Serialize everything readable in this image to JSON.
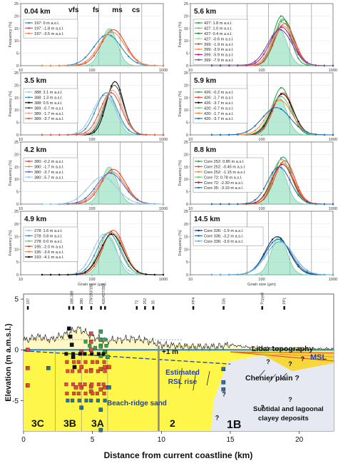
{
  "figure": {
    "size_classes": [
      "vfs",
      "fs",
      "ms",
      "cs"
    ],
    "x_axis_label": "Grain size (µm)",
    "y_axis_label": "Frequency (%)",
    "x_ticks": [
      "10",
      "100",
      "1000"
    ],
    "y_ticks": [
      "0",
      "5",
      "10",
      "15",
      "20",
      "25"
    ]
  },
  "panels": [
    {
      "title": "0.04 km",
      "legend": [
        "197:    0 m a.s.l.",
        "197:  -1.8 m a.s.l.",
        "197:  -3.5 m a.s.l."
      ],
      "colors": [
        "#2b8cbe",
        "#e8483a",
        "#f08a4b"
      ]
    },
    {
      "title": "3.5 km",
      "legend": [
        "388: 2.1 m a.s.l.",
        "388: 1.3 m a.s.l.",
        "388: 0.5 m a.s.l.",
        "389: -0.7 m a.s.l.",
        "389: -1.7 m a.s.l.",
        "389: -3.7 m a.s.l."
      ],
      "colors": [
        "#9ecae1",
        "#4292c6",
        "#111111",
        "#555555",
        "#f4a582",
        "#d6604d"
      ]
    },
    {
      "title": "4.2 km",
      "legend": [
        "380: -0.2 m a.s.l.",
        "380: -1.7 m a.s.l.",
        "380: -3.7 m a.s.l.",
        "380: -5.7 m a.s.l."
      ],
      "colors": [
        "#e8483a",
        "#f08a4b",
        "#4a6fc9",
        "#9ecae1"
      ]
    },
    {
      "title": "4.9 km",
      "legend": [
        "278: 1.6 m a.s.l.",
        "278: 0.8 m a.s.l.",
        "278: 0.0 m a.s.l.",
        "195: -2.0 m a.s.l.",
        "195: -3.6 m a.s.l.",
        "193: -4.1 m a.s.l."
      ],
      "colors": [
        "#9ecae1",
        "#4292c6",
        "#74c476",
        "#e8483a",
        "#f08a4b",
        "#111111"
      ]
    },
    {
      "title": "5.6 km",
      "legend": [
        "427:  1.8 m a.s.l.",
        "427:  1.0 m a.s.l.",
        "427:  0.4 m a.s.l.",
        "427: -0.6 m a.s.l.",
        "399: -1.9 m a.s.l.",
        "399: -3.9 m a.s.l.",
        "399: -5.9 m a.s.l.",
        "399: -7.9 m a.s.l."
      ],
      "colors": [
        "#31a354",
        "#74c476",
        "#238b45",
        "#a1d99b",
        "#e8483a",
        "#f08a4b",
        "#c51b8a",
        "#6a51a3"
      ]
    },
    {
      "title": "5.9 km",
      "legend": [
        "426: -0.2 m a.s.l.",
        "426: -1.7 m a.s.l.",
        "426: -3.7 m a.s.l.",
        "420: -0.7 m a.s.l.",
        "420: -1.7 m a.s.l.",
        "420: -3.7 m a.s.l."
      ],
      "colors": [
        "#31a354",
        "#e8483a",
        "#111111",
        "#74c476",
        "#f08a4b",
        "#2171b5"
      ]
    },
    {
      "title": "8.8 km",
      "legend": [
        "Core 252: 0.85 m a.s.l.",
        "Core 252: -0.45 m a.s.l.",
        "Core 252: -1.15 m a.s.l.",
        "Core  72: 0.78 m a.s.l.",
        "Core  72: -2.30 m a.s.l.",
        "Core  35: -3.10 m a.s.l."
      ],
      "colors": [
        "#31a354",
        "#e8483a",
        "#f08a4b",
        "#74c476",
        "#cb181d",
        "#2171b5"
      ]
    },
    {
      "title": "14.5 km",
      "legend": [
        "Core 336: -1.9 m a.s.l.",
        "Core 336: -3.2 m a.s.l.",
        "Core 336: -3.9 m a.s.l."
      ],
      "colors": [
        "#08306b",
        "#2171b5",
        "#6baed6"
      ]
    }
  ],
  "section": {
    "y_label": "Elevation (m a.m.s.l.)",
    "x_label": "Distance from current coastline (km)",
    "x_ticks": [
      "0",
      "5",
      "10",
      "15",
      "20"
    ],
    "y_ticks": [
      "5",
      "0",
      "-5"
    ],
    "annotations": {
      "lidar": "Lidar topography",
      "msl": "MSL",
      "plus1m": "+1 m",
      "rsl": "Estimated RSL rise",
      "chenier": "Chenier plain ?",
      "beach": "Beach-ridge sand",
      "subtidal_1": "Subtidal and lagoonal",
      "subtidal_2": "clayey deposits"
    },
    "units": [
      "3C",
      "3B",
      "3A",
      "2",
      "1B"
    ],
    "core_labels": [
      "197",
      "388-389",
      "380",
      "278/193/195",
      "426/427/399",
      "72",
      "252",
      "35",
      "PP4",
      "336",
      "Pzpyell",
      "PP1"
    ],
    "questions": [
      "?",
      "?",
      "?",
      "?",
      "?",
      "?",
      "?"
    ]
  },
  "chart_data": [
    {
      "type": "line",
      "title": "0.04 km",
      "x_scale": "log",
      "xlim": [
        10,
        1000
      ],
      "ylim": [
        0,
        25
      ],
      "xlabel": "",
      "ylabel": "Frequency (%)",
      "series": [
        {
          "name": "197:    0 m a.s.l.",
          "mode_um": 165,
          "peak": 12.5,
          "width": 0.19,
          "color": "#2b8cbe"
        },
        {
          "name": "197:  -1.8 m a.s.l.",
          "mode_um": 200,
          "peak": 14.5,
          "width": 0.17,
          "color": "#e8483a"
        },
        {
          "name": "197:  -3.5 m a.s.l.",
          "mode_um": 190,
          "peak": 13.5,
          "width": 0.18,
          "color": "#f08a4b"
        }
      ]
    },
    {
      "type": "line",
      "title": "3.5 km",
      "x_scale": "log",
      "xlim": [
        10,
        1000
      ],
      "ylim": [
        0,
        25
      ],
      "xlabel": "",
      "ylabel": "Frequency (%)",
      "series": [
        {
          "name": "388: 2.1 m a.s.l.",
          "mode_um": 150,
          "peak": 16,
          "width": 0.16,
          "color": "#9ecae1"
        },
        {
          "name": "388: 1.3 m a.s.l.",
          "mode_um": 160,
          "peak": 17,
          "width": 0.15,
          "color": "#4292c6"
        },
        {
          "name": "388: 0.5 m a.s.l.",
          "mode_um": 210,
          "peak": 21.5,
          "width": 0.12,
          "color": "#111111"
        },
        {
          "name": "389: -0.7 m a.s.l.",
          "mode_um": 205,
          "peak": 20,
          "width": 0.13,
          "color": "#555555"
        },
        {
          "name": "389: -1.7 m a.s.l.",
          "mode_um": 195,
          "peak": 18,
          "width": 0.14,
          "color": "#f4a582"
        },
        {
          "name": "389: -3.7 m a.s.l.",
          "mode_um": 185,
          "peak": 17,
          "width": 0.15,
          "color": "#d6604d"
        }
      ]
    },
    {
      "type": "line",
      "title": "4.2 km",
      "x_scale": "log",
      "xlim": [
        10,
        1000
      ],
      "ylim": [
        0,
        25
      ],
      "xlabel": "",
      "ylabel": "Frequency (%)",
      "series": [
        {
          "name": "380: -0.2 m a.s.l.",
          "mode_um": 200,
          "peak": 14,
          "width": 0.17,
          "color": "#e8483a"
        },
        {
          "name": "380: -1.7 m a.s.l.",
          "mode_um": 190,
          "peak": 13,
          "width": 0.18,
          "color": "#f08a4b"
        },
        {
          "name": "380: -3.7 m a.s.l.",
          "mode_um": 180,
          "peak": 12.5,
          "width": 0.19,
          "color": "#4a6fc9"
        },
        {
          "name": "380: -5.7 m a.s.l.",
          "mode_um": 140,
          "peak": 11,
          "width": 0.2,
          "color": "#9ecae1"
        }
      ]
    },
    {
      "type": "line",
      "title": "4.9 km",
      "x_scale": "log",
      "xlim": [
        10,
        1000
      ],
      "ylim": [
        0,
        25
      ],
      "xlabel": "Grain size (µm)",
      "ylabel": "Frequency (%)",
      "series": [
        {
          "name": "278: 1.6 m a.s.l.",
          "mode_um": 150,
          "peak": 16,
          "width": 0.16,
          "color": "#9ecae1"
        },
        {
          "name": "278: 0.8 m a.s.l.",
          "mode_um": 170,
          "peak": 16.5,
          "width": 0.16,
          "color": "#4292c6"
        },
        {
          "name": "278: 0.0 m a.s.l.",
          "mode_um": 180,
          "peak": 17,
          "width": 0.15,
          "color": "#74c476"
        },
        {
          "name": "195: -2.0 m a.s.l.",
          "mode_um": 200,
          "peak": 17.5,
          "width": 0.15,
          "color": "#e8483a"
        },
        {
          "name": "195: -3.6 m a.s.l.",
          "mode_um": 195,
          "peak": 16.5,
          "width": 0.16,
          "color": "#f08a4b"
        },
        {
          "name": "193: -4.1 m a.s.l.",
          "mode_um": 190,
          "peak": 16,
          "width": 0.16,
          "color": "#111111"
        }
      ]
    },
    {
      "type": "line",
      "title": "5.6 km",
      "x_scale": "log",
      "xlim": [
        10,
        1000
      ],
      "ylim": [
        0,
        25
      ],
      "xlabel": "",
      "ylabel": "Frequency (%)",
      "series": [
        {
          "name": "427:  1.8 m a.s.l.",
          "mode_um": 190,
          "peak": 20,
          "width": 0.12,
          "color": "#31a354"
        },
        {
          "name": "427:  1.0 m a.s.l.",
          "mode_um": 200,
          "peak": 19,
          "width": 0.13,
          "color": "#74c476"
        },
        {
          "name": "427:  0.4 m a.s.l.",
          "mode_um": 205,
          "peak": 18.5,
          "width": 0.13,
          "color": "#238b45"
        },
        {
          "name": "427: -0.6 m a.s.l.",
          "mode_um": 195,
          "peak": 17.5,
          "width": 0.14,
          "color": "#a1d99b"
        },
        {
          "name": "399: -1.9 m a.s.l.",
          "mode_um": 210,
          "peak": 17,
          "width": 0.14,
          "color": "#e8483a"
        },
        {
          "name": "399: -3.9 m a.s.l.",
          "mode_um": 200,
          "peak": 16,
          "width": 0.15,
          "color": "#f08a4b"
        },
        {
          "name": "399: -5.9 m a.s.l.",
          "mode_um": 190,
          "peak": 15.5,
          "width": 0.16,
          "color": "#c51b8a"
        },
        {
          "name": "399: -7.9 m a.s.l.",
          "mode_um": 180,
          "peak": 14.5,
          "width": 0.17,
          "color": "#6a51a3"
        }
      ]
    },
    {
      "type": "line",
      "title": "5.9 km",
      "x_scale": "log",
      "xlim": [
        10,
        1000
      ],
      "ylim": [
        0,
        25
      ],
      "xlabel": "",
      "ylabel": "Frequency (%)",
      "series": [
        {
          "name": "426: -0.2 m a.s.l.",
          "mode_um": 190,
          "peak": 19,
          "width": 0.13,
          "color": "#31a354"
        },
        {
          "name": "426: -1.7 m a.s.l.",
          "mode_um": 200,
          "peak": 17,
          "width": 0.14,
          "color": "#e8483a"
        },
        {
          "name": "426: -3.7 m a.s.l.",
          "mode_um": 195,
          "peak": 16.5,
          "width": 0.15,
          "color": "#111111"
        },
        {
          "name": "420: -0.7 m a.s.l.",
          "mode_um": 185,
          "peak": 15.5,
          "width": 0.15,
          "color": "#74c476"
        },
        {
          "name": "420: -1.7 m a.s.l.",
          "mode_um": 180,
          "peak": 14,
          "width": 0.17,
          "color": "#f08a4b"
        },
        {
          "name": "420: -3.7 m a.s.l.",
          "mode_um": 160,
          "peak": 11,
          "width": 0.2,
          "color": "#2171b5"
        }
      ]
    },
    {
      "type": "line",
      "title": "8.8 km",
      "x_scale": "log",
      "xlim": [
        10,
        1000
      ],
      "ylim": [
        0,
        25
      ],
      "xlabel": "",
      "ylabel": "Frequency (%)",
      "series": [
        {
          "name": "Core 252: 0.85 m a.s.l.",
          "mode_um": 200,
          "peak": 19,
          "width": 0.13,
          "color": "#31a354"
        },
        {
          "name": "Core 252: -0.45 m a.s.l.",
          "mode_um": 210,
          "peak": 17.5,
          "width": 0.14,
          "color": "#e8483a"
        },
        {
          "name": "Core 252: -1.15 m a.s.l.",
          "mode_um": 200,
          "peak": 16.5,
          "width": 0.15,
          "color": "#f08a4b"
        },
        {
          "name": "Core  72: 0.78 m a.s.l.",
          "mode_um": 190,
          "peak": 18,
          "width": 0.14,
          "color": "#74c476"
        },
        {
          "name": "Core  72: -2.30 m a.s.l.",
          "mode_um": 195,
          "peak": 16,
          "width": 0.15,
          "color": "#cb181d"
        },
        {
          "name": "Core  35: -3.10 m a.s.l.",
          "mode_um": 175,
          "peak": 15,
          "width": 0.16,
          "color": "#2171b5"
        }
      ]
    },
    {
      "type": "line",
      "title": "14.5 km",
      "x_scale": "log",
      "xlim": [
        10,
        1000
      ],
      "ylim": [
        0,
        25
      ],
      "xlabel": "Grain size (µm)",
      "ylabel": "Frequency (%)",
      "series": [
        {
          "name": "Core 336: -1.9 m a.s.l.",
          "mode_um": 165,
          "peak": 15,
          "width": 0.17,
          "color": "#08306b"
        },
        {
          "name": "Core 336: -3.2 m a.s.l.",
          "mode_um": 170,
          "peak": 14,
          "width": 0.18,
          "color": "#2171b5"
        },
        {
          "name": "Core 336: -3.9 m a.s.l.",
          "mode_um": 180,
          "peak": 13,
          "width": 0.19,
          "color": "#6baed6"
        }
      ]
    },
    {
      "type": "scatter",
      "title": "",
      "xlabel": "Distance from current coastline (km)",
      "ylabel": "Elevation (m a.m.s.l.)",
      "xlim": [
        0,
        22.5
      ],
      "ylim": [
        -8,
        5.5
      ],
      "lidar_profile": [
        [
          0,
          0.9
        ],
        [
          1,
          1.3
        ],
        [
          2,
          1.0
        ],
        [
          3,
          1.5
        ],
        [
          4,
          2.1
        ],
        [
          5,
          1.3
        ],
        [
          6,
          0.9
        ],
        [
          7,
          1.0
        ],
        [
          8,
          1.1
        ],
        [
          9,
          0.9
        ],
        [
          10,
          0.5
        ],
        [
          11,
          0.4
        ],
        [
          12,
          0.3
        ],
        [
          13,
          0.3
        ],
        [
          14,
          0.3
        ],
        [
          15,
          0.5
        ],
        [
          16,
          0.3
        ],
        [
          17,
          0.2
        ],
        [
          18,
          0.2
        ],
        [
          19,
          0.1
        ],
        [
          20,
          0.1
        ],
        [
          21,
          0.1
        ],
        [
          22.5,
          0.1
        ]
      ],
      "samples": [
        {
          "x": 0.3,
          "y": 0,
          "color": "#e8483a"
        },
        {
          "x": 0.3,
          "y": -1.8,
          "color": "#e8483a"
        },
        {
          "x": 0.3,
          "y": -3.5,
          "color": "#e8483a"
        },
        {
          "x": 1.8,
          "y": -1.8,
          "color": "#2171b5"
        },
        {
          "x": 3.3,
          "y": 2.1,
          "color": "#111111"
        },
        {
          "x": 3.4,
          "y": 1.3,
          "color": "#111111"
        },
        {
          "x": 3.5,
          "y": 0.5,
          "color": "#111111"
        },
        {
          "x": 3.6,
          "y": -0.7,
          "color": "#111111"
        },
        {
          "x": 3.7,
          "y": -1.7,
          "color": "#111111"
        },
        {
          "x": 3.8,
          "y": -3.7,
          "color": "#e8483a"
        },
        {
          "x": 4.2,
          "y": -0.2,
          "color": "#e8483a"
        },
        {
          "x": 4.2,
          "y": -1.7,
          "color": "#e8483a"
        },
        {
          "x": 4.2,
          "y": -3.7,
          "color": "#e8483a"
        },
        {
          "x": 4.2,
          "y": -5.7,
          "color": "#2171b5"
        },
        {
          "x": 4.9,
          "y": 1.6,
          "color": "#e8483a"
        },
        {
          "x": 4.9,
          "y": 0.8,
          "color": "#e8483a"
        },
        {
          "x": 4.9,
          "y": 0.0,
          "color": "#e8483a"
        },
        {
          "x": 4.9,
          "y": -2.0,
          "color": "#e8483a"
        },
        {
          "x": 4.9,
          "y": -3.6,
          "color": "#e8483a"
        },
        {
          "x": 4.9,
          "y": -4.1,
          "color": "#e8483a"
        },
        {
          "x": 5.6,
          "y": 1.8,
          "color": "#31a354"
        },
        {
          "x": 5.6,
          "y": 1.0,
          "color": "#31a354"
        },
        {
          "x": 5.6,
          "y": 0.4,
          "color": "#31a354"
        },
        {
          "x": 5.6,
          "y": -0.6,
          "color": "#31a354"
        },
        {
          "x": 5.6,
          "y": -1.9,
          "color": "#e8483a"
        },
        {
          "x": 5.6,
          "y": -3.9,
          "color": "#e8483a"
        },
        {
          "x": 5.6,
          "y": -5.9,
          "color": "#2171b5"
        },
        {
          "x": 5.6,
          "y": -7.9,
          "color": "#2171b5"
        },
        {
          "x": 5.9,
          "y": -0.2,
          "color": "#31a354"
        },
        {
          "x": 5.9,
          "y": -1.7,
          "color": "#e8483a"
        },
        {
          "x": 5.9,
          "y": -3.7,
          "color": "#e8483a"
        },
        {
          "x": 6.1,
          "y": -0.7,
          "color": "#31a354"
        },
        {
          "x": 6.2,
          "y": -1.7,
          "color": "#e8483a"
        },
        {
          "x": 6.2,
          "y": -3.7,
          "color": "#2171b5"
        },
        {
          "x": 14.5,
          "y": -1.9,
          "color": "#2171b5"
        },
        {
          "x": 14.5,
          "y": -3.2,
          "color": "#2171b5"
        },
        {
          "x": 14.5,
          "y": -3.9,
          "color": "#2171b5"
        }
      ]
    }
  ]
}
